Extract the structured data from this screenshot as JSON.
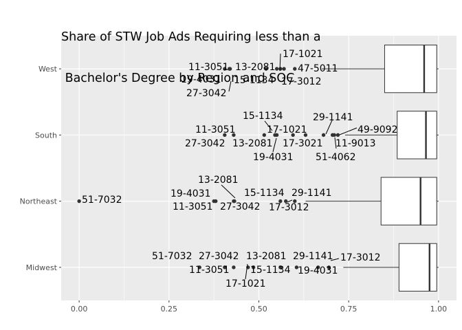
{
  "chart_data": {
    "type": "boxplot",
    "title_lines": [
      "Share of STW Job Ads Requiring less than a",
      " Bachelor's Degree by Region and SOC"
    ],
    "xlabel": "",
    "ylabel": "",
    "xlim": [
      -0.05,
      1.05
    ],
    "x_ticks": [
      0.0,
      0.25,
      0.5,
      0.75,
      1.0
    ],
    "x_tick_labels": [
      "0.00",
      "0.25",
      "0.50",
      "0.75",
      "1.00"
    ],
    "categories": [
      "West",
      "South",
      "Northeast",
      "Midwest"
    ],
    "grid": true,
    "boxes": [
      {
        "region": "West",
        "lower_whisker": 0.675,
        "q1": 0.85,
        "median": 0.96,
        "q3": 0.995,
        "upper_whisker": 1.0
      },
      {
        "region": "South",
        "lower_whisker": 0.74,
        "q1": 0.885,
        "median": 0.965,
        "q3": 0.995,
        "upper_whisker": 1.0
      },
      {
        "region": "Northeast",
        "lower_whisker": 0.63,
        "q1": 0.84,
        "median": 0.95,
        "q3": 0.995,
        "upper_whisker": 1.0
      },
      {
        "region": "Midwest",
        "lower_whisker": 0.735,
        "q1": 0.89,
        "median": 0.975,
        "q3": 0.995,
        "upper_whisker": 1.0
      }
    ],
    "outliers": [
      {
        "region": "West",
        "x": 0.405,
        "soc": "11-3051"
      },
      {
        "region": "West",
        "x": 0.418,
        "soc": "19-4031"
      },
      {
        "region": "West",
        "x": 0.42,
        "soc": "27-3042"
      },
      {
        "region": "West",
        "x": 0.52,
        "soc": "13-2081"
      },
      {
        "region": "West",
        "x": 0.55,
        "soc": "15-1134"
      },
      {
        "region": "West",
        "x": 0.56,
        "soc": "17-1021"
      },
      {
        "region": "West",
        "x": 0.57,
        "soc": "17-3012"
      },
      {
        "region": "West",
        "x": 0.6,
        "soc": "47-5011"
      },
      {
        "region": "South",
        "x": 0.405,
        "soc": "27-3042"
      },
      {
        "region": "South",
        "x": 0.43,
        "soc": "11-3051"
      },
      {
        "region": "South",
        "x": 0.515,
        "soc": "13-2081"
      },
      {
        "region": "South",
        "x": 0.545,
        "soc": "15-1134"
      },
      {
        "region": "South",
        "x": 0.55,
        "soc": "19-4031"
      },
      {
        "region": "South",
        "x": 0.595,
        "soc": "17-1021"
      },
      {
        "region": "South",
        "x": 0.63,
        "soc": "17-3021"
      },
      {
        "region": "South",
        "x": 0.68,
        "soc": "29-1141"
      },
      {
        "region": "South",
        "x": 0.705,
        "soc": "51-4062"
      },
      {
        "region": "South",
        "x": 0.71,
        "soc": "11-9013"
      },
      {
        "region": "South",
        "x": 0.72,
        "soc": "49-9092"
      },
      {
        "region": "Northeast",
        "x": 0.0,
        "soc": "51-7032"
      },
      {
        "region": "Northeast",
        "x": 0.375,
        "soc": "11-3051"
      },
      {
        "region": "Northeast",
        "x": 0.38,
        "soc": "19-4031"
      },
      {
        "region": "Northeast",
        "x": 0.43,
        "soc": "27-3042"
      },
      {
        "region": "Northeast",
        "x": 0.432,
        "soc": "13-2081"
      },
      {
        "region": "Northeast",
        "x": 0.56,
        "soc": "17-3012"
      },
      {
        "region": "Northeast",
        "x": 0.575,
        "soc": "15-1134"
      },
      {
        "region": "Northeast",
        "x": 0.6,
        "soc": "29-1141"
      },
      {
        "region": "Midwest",
        "x": 0.335,
        "soc": "51-7032"
      },
      {
        "region": "Midwest",
        "x": 0.405,
        "soc": "11-3051"
      },
      {
        "region": "Midwest",
        "x": 0.43,
        "soc": "27-3042"
      },
      {
        "region": "Midwest",
        "x": 0.47,
        "soc": "17-1021"
      },
      {
        "region": "Midwest",
        "x": 0.485,
        "soc": "15-1134"
      },
      {
        "region": "Midwest",
        "x": 0.56,
        "soc": "13-2081"
      },
      {
        "region": "Midwest",
        "x": 0.605,
        "soc": "19-4031"
      },
      {
        "region": "Midwest",
        "x": 0.665,
        "soc": "29-1141"
      },
      {
        "region": "Midwest",
        "x": 0.695,
        "soc": "17-3012"
      }
    ]
  }
}
